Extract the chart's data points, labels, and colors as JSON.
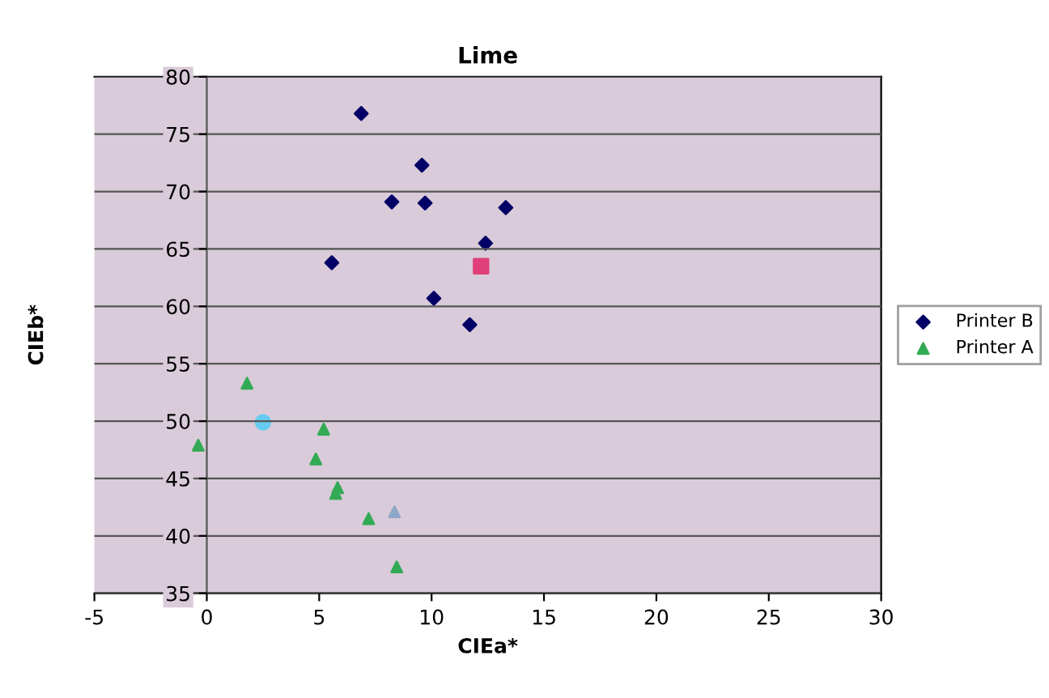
{
  "chart_data": {
    "type": "scatter",
    "title": "Lime",
    "xlabel": "CIEa*",
    "ylabel": "CIEb*",
    "xlim": [
      -5,
      30
    ],
    "xticks": [
      -5,
      0,
      5,
      10,
      15,
      20,
      25,
      30
    ],
    "ylim": [
      35,
      80
    ],
    "yticks": [
      35,
      40,
      45,
      50,
      55,
      60,
      65,
      70,
      75,
      80
    ],
    "grid": "y",
    "legend": "right",
    "series": [
      {
        "name": "Printer B",
        "color": "#000066",
        "marker": "diamond",
        "x": [
          6.87,
          9.57,
          8.23,
          9.71,
          13.3,
          12.4,
          5.56,
          10.1,
          11.7
        ],
        "values": [
          76.8,
          72.3,
          69.1,
          69.0,
          68.6,
          65.5,
          63.8,
          60.7,
          58.4
        ]
      },
      {
        "name": "Printer A",
        "color": "#33aa55",
        "marker": "triangle",
        "x": [
          1.79,
          -0.38,
          5.2,
          4.85,
          5.82,
          5.73,
          7.2,
          8.45
        ],
        "values": [
          53.3,
          47.9,
          49.3,
          46.7,
          44.2,
          43.7,
          41.5,
          37.3
        ]
      },
      {
        "color": "#e0407a",
        "marker": "square",
        "x": [
          12.2
        ],
        "values": [
          63.5
        ]
      },
      {
        "color": "#66ccf0",
        "marker": "circle",
        "x": [
          2.5
        ],
        "values": [
          49.9
        ]
      },
      {
        "color": "#8fa8c8",
        "marker": "triangle",
        "x": [
          8.35
        ],
        "values": [
          42.1
        ]
      }
    ]
  }
}
